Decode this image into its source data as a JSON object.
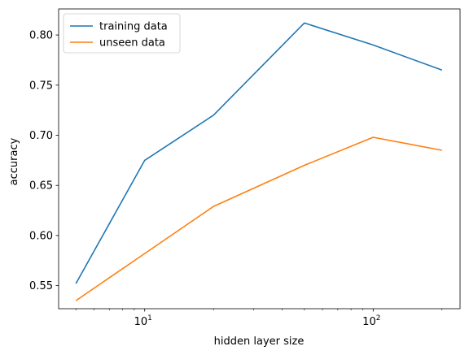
{
  "chart_data": {
    "type": "line",
    "title": "",
    "xlabel": "hidden layer size",
    "ylabel": "accuracy",
    "x_scale": "log",
    "x": [
      5,
      10,
      20,
      50,
      100,
      200
    ],
    "xlim": [
      4.2,
      240
    ],
    "ylim": [
      0.527,
      0.826
    ],
    "x_ticks": [
      {
        "value": 10,
        "base": "10",
        "exp": "1"
      },
      {
        "value": 100,
        "base": "10",
        "exp": "2"
      }
    ],
    "y_ticks": [
      {
        "value": 0.55,
        "label": "0.55"
      },
      {
        "value": 0.6,
        "label": "0.60"
      },
      {
        "value": 0.65,
        "label": "0.65"
      },
      {
        "value": 0.7,
        "label": "0.70"
      },
      {
        "value": 0.75,
        "label": "0.75"
      },
      {
        "value": 0.8,
        "label": "0.80"
      }
    ],
    "series": [
      {
        "name": "training data",
        "color": "#1f77b4",
        "values": [
          0.552,
          0.675,
          0.72,
          0.812,
          0.79,
          0.765
        ]
      },
      {
        "name": "unseen data",
        "color": "#ff7f0e",
        "values": [
          0.535,
          0.582,
          0.629,
          0.67,
          0.698,
          0.685
        ]
      }
    ],
    "grid": false,
    "legend": "upper left"
  }
}
